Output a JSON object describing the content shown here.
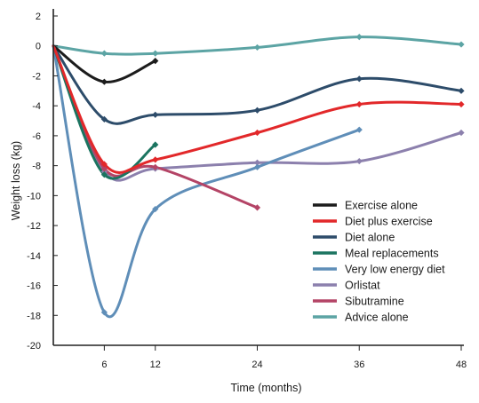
{
  "chart_data": {
    "type": "line",
    "xlabel": "Time (months)",
    "ylabel": "Weight loss (kg)",
    "xticks": [
      6,
      12,
      24,
      36,
      48
    ],
    "xlim": [
      0,
      48
    ],
    "yticks": [
      2,
      0,
      -2,
      -4,
      -6,
      -8,
      -10,
      -12,
      -14,
      -16,
      -18,
      -20
    ],
    "ylim": [
      -20,
      2
    ],
    "grid": false,
    "legend_position": "lower-right",
    "series": [
      {
        "name": "Exercise alone",
        "color": "#1c1c1c",
        "points": [
          [
            0,
            0
          ],
          [
            6,
            -2.4
          ],
          [
            12,
            -1.0
          ]
        ]
      },
      {
        "name": "Diet plus exercise",
        "color": "#e2282a",
        "points": [
          [
            0,
            0
          ],
          [
            6,
            -7.9
          ],
          [
            12,
            -7.6
          ],
          [
            24,
            -5.8
          ],
          [
            36,
            -3.9
          ],
          [
            48,
            -3.9
          ]
        ]
      },
      {
        "name": "Diet alone",
        "color": "#2d4c6a",
        "points": [
          [
            0,
            0
          ],
          [
            6,
            -4.9
          ],
          [
            12,
            -4.6
          ],
          [
            24,
            -4.3
          ],
          [
            36,
            -2.2
          ],
          [
            48,
            -3.0
          ]
        ]
      },
      {
        "name": "Meal replacements",
        "color": "#1b7460",
        "points": [
          [
            0,
            0
          ],
          [
            6,
            -8.6
          ],
          [
            12,
            -6.6
          ]
        ]
      },
      {
        "name": "Very low energy diet",
        "color": "#5f8eb8",
        "points": [
          [
            0,
            0
          ],
          [
            6,
            -17.8
          ],
          [
            12,
            -10.9
          ],
          [
            24,
            -8.1
          ],
          [
            36,
            -5.6
          ]
        ]
      },
      {
        "name": "Orlistat",
        "color": "#8c80ad",
        "points": [
          [
            0,
            0
          ],
          [
            6,
            -8.4
          ],
          [
            12,
            -8.2
          ],
          [
            24,
            -7.8
          ],
          [
            36,
            -7.7
          ],
          [
            48,
            -5.8
          ]
        ]
      },
      {
        "name": "Sibutramine",
        "color": "#b44466",
        "points": [
          [
            0,
            0
          ],
          [
            6,
            -8.2
          ],
          [
            12,
            -8.1
          ],
          [
            24,
            -10.8
          ]
        ]
      },
      {
        "name": "Advice alone",
        "color": "#5ca4a4",
        "points": [
          [
            0,
            0
          ],
          [
            6,
            -0.5
          ],
          [
            12,
            -0.5
          ],
          [
            24,
            -0.1
          ],
          [
            36,
            0.6
          ],
          [
            48,
            0.1
          ]
        ]
      }
    ]
  }
}
